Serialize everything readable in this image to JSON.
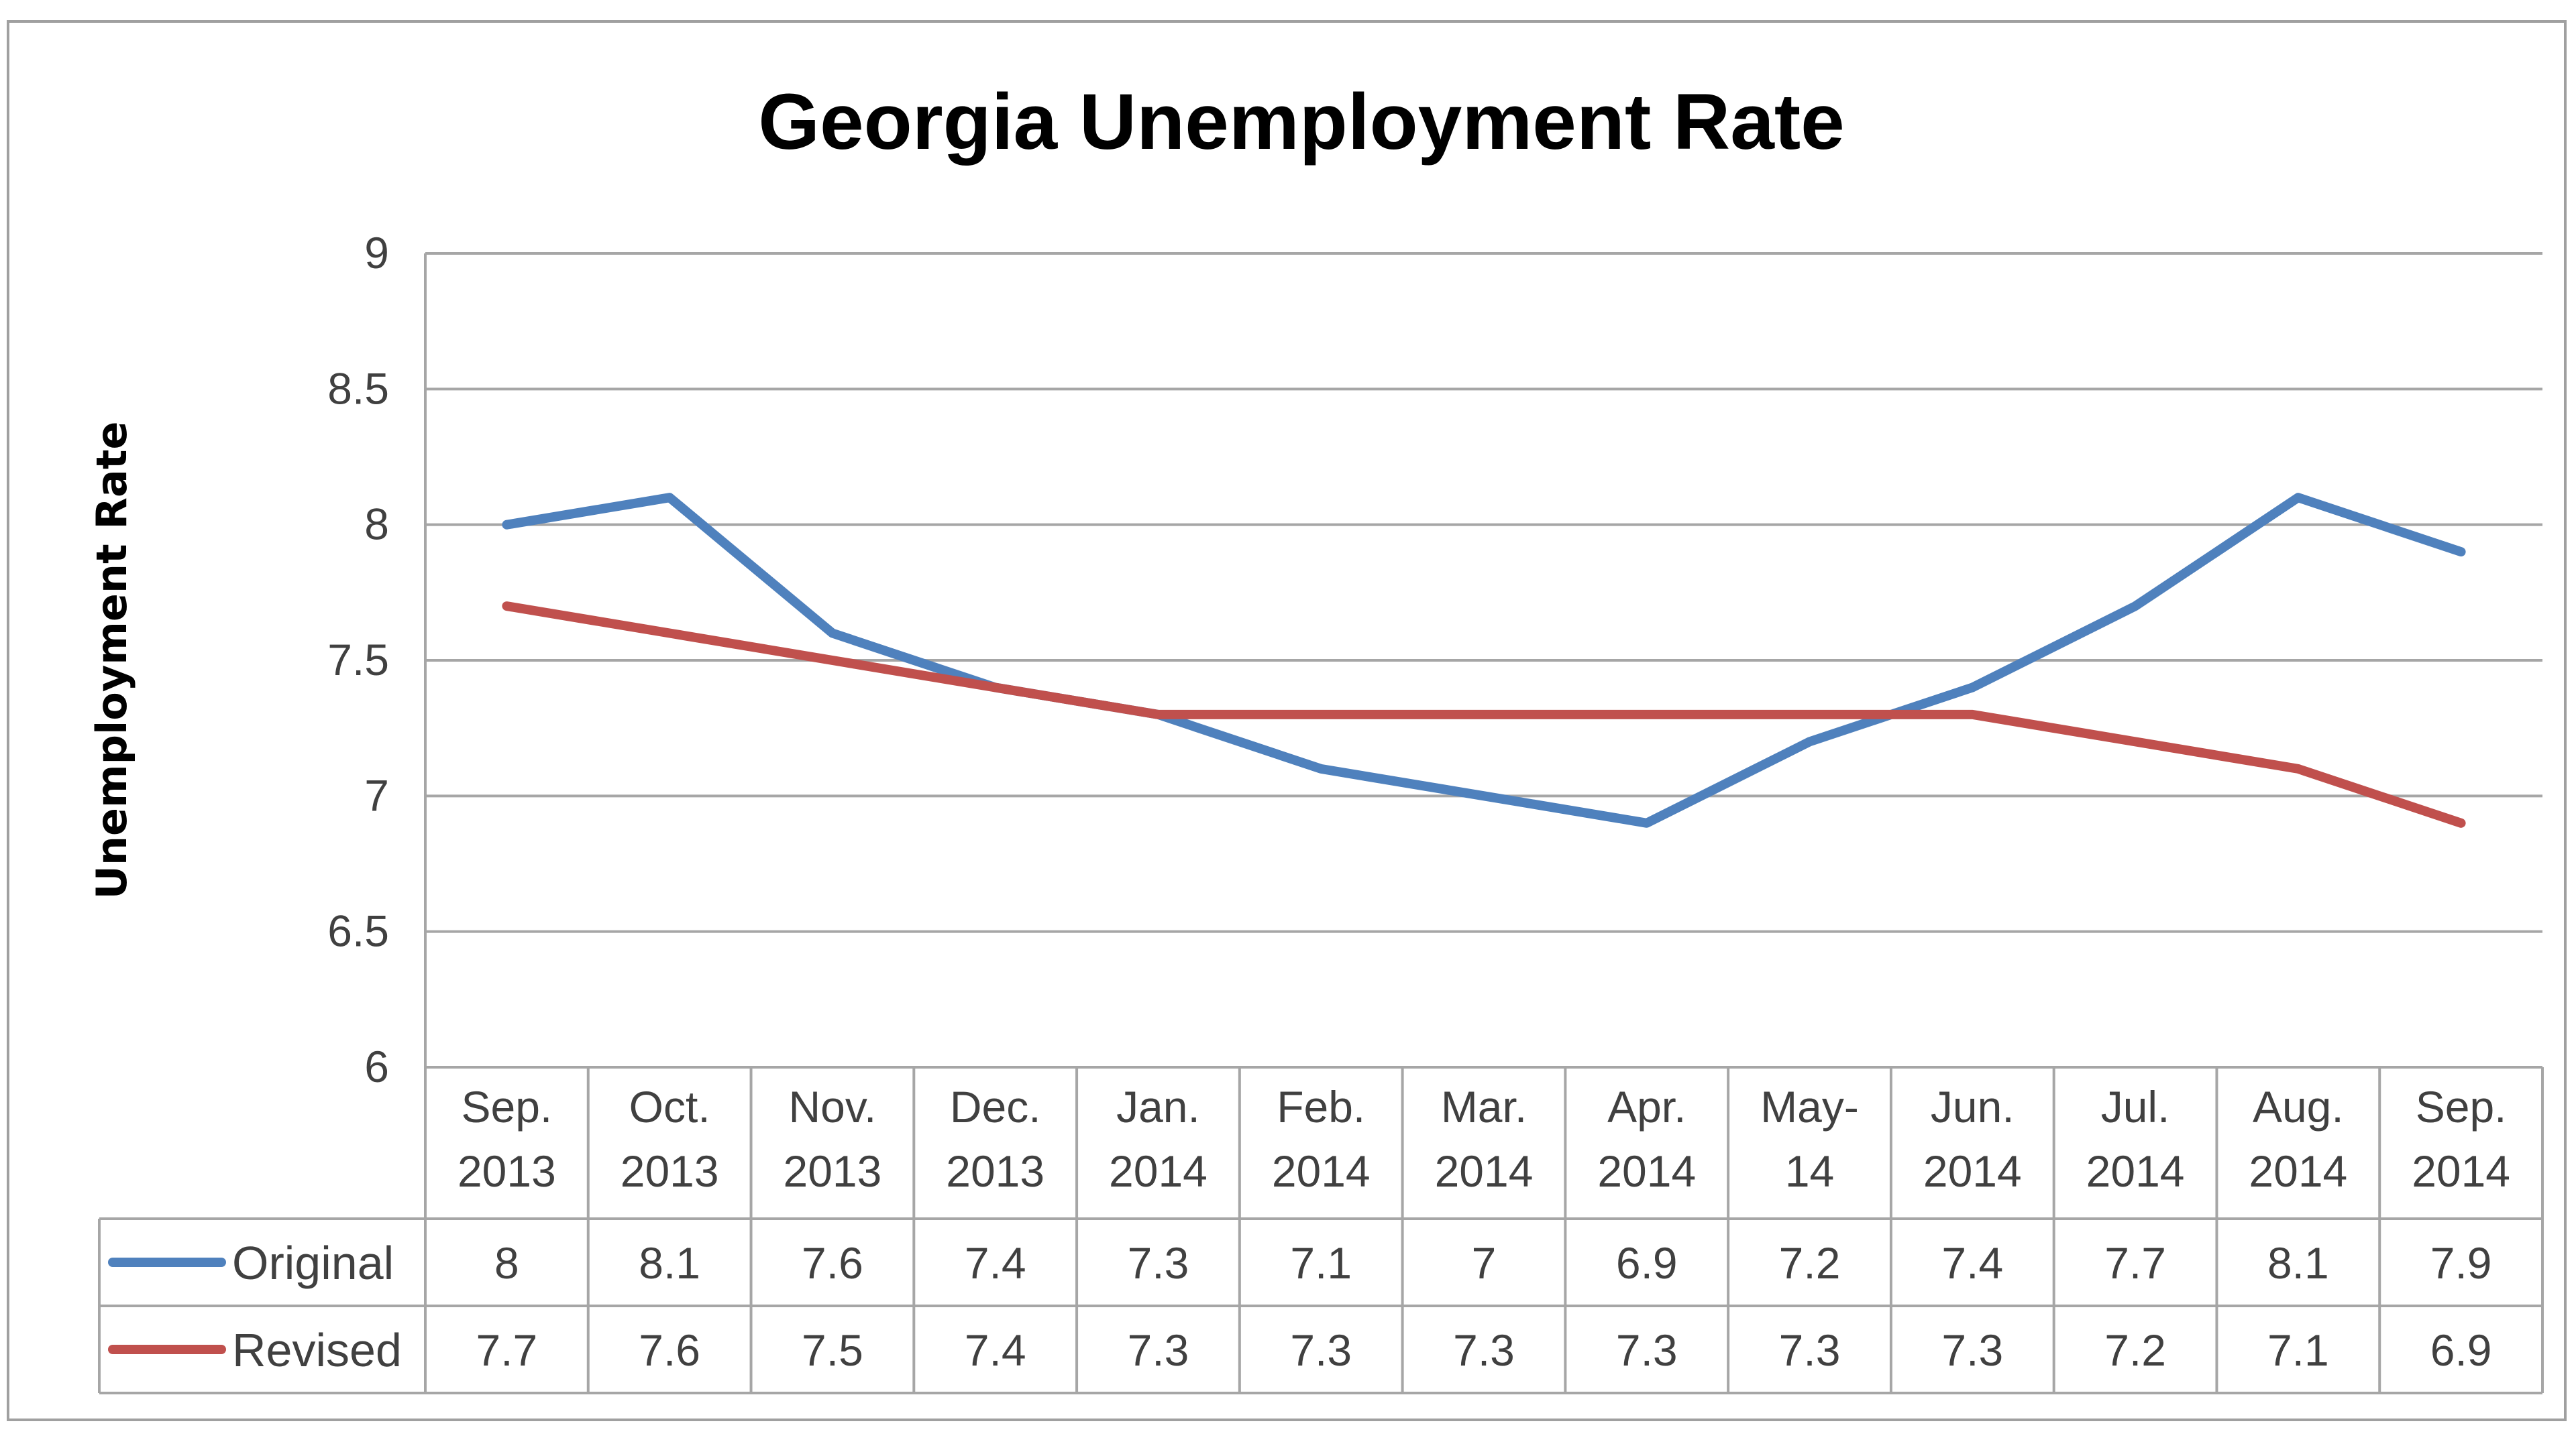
{
  "chart_data": {
    "type": "line",
    "title": "Georgia Unemployment Rate",
    "xlabel": "",
    "ylabel": "Unemployment  Rate",
    "ylim": [
      6,
      9
    ],
    "yticks": [
      "6",
      "6.5",
      "7",
      "7.5",
      "8",
      "8.5",
      "9"
    ],
    "categories": [
      [
        "Sep.",
        "2013"
      ],
      [
        "Oct.",
        "2013"
      ],
      [
        "Nov.",
        "2013"
      ],
      [
        "Dec.",
        "2013"
      ],
      [
        "Jan.",
        "2014"
      ],
      [
        "Feb.",
        "2014"
      ],
      [
        "Mar.",
        "2014"
      ],
      [
        "Apr.",
        "2014"
      ],
      [
        "May-",
        "14"
      ],
      [
        "Jun.",
        "2014"
      ],
      [
        "Jul.",
        "2014"
      ],
      [
        "Aug.",
        "2014"
      ],
      [
        "Sep.",
        "2014"
      ]
    ],
    "grid": true,
    "legend": "data-table",
    "series": [
      {
        "name": "Original",
        "color": "#4f81bd",
        "values": [
          8,
          8.1,
          7.6,
          7.4,
          7.3,
          7.1,
          7,
          6.9,
          7.2,
          7.4,
          7.7,
          8.1,
          7.9
        ],
        "labels": [
          "8",
          "8.1",
          "7.6",
          "7.4",
          "7.3",
          "7.1",
          "7",
          "6.9",
          "7.2",
          "7.4",
          "7.7",
          "8.1",
          "7.9"
        ]
      },
      {
        "name": "Revised",
        "color": "#c0504d",
        "values": [
          7.7,
          7.6,
          7.5,
          7.4,
          7.3,
          7.3,
          7.3,
          7.3,
          7.3,
          7.3,
          7.2,
          7.1,
          6.9
        ],
        "labels": [
          "7.7",
          "7.6",
          "7.5",
          "7.4",
          "7.3",
          "7.3",
          "7.3",
          "7.3",
          "7.3",
          "7.3",
          "7.2",
          "7.1",
          "6.9"
        ]
      }
    ]
  }
}
